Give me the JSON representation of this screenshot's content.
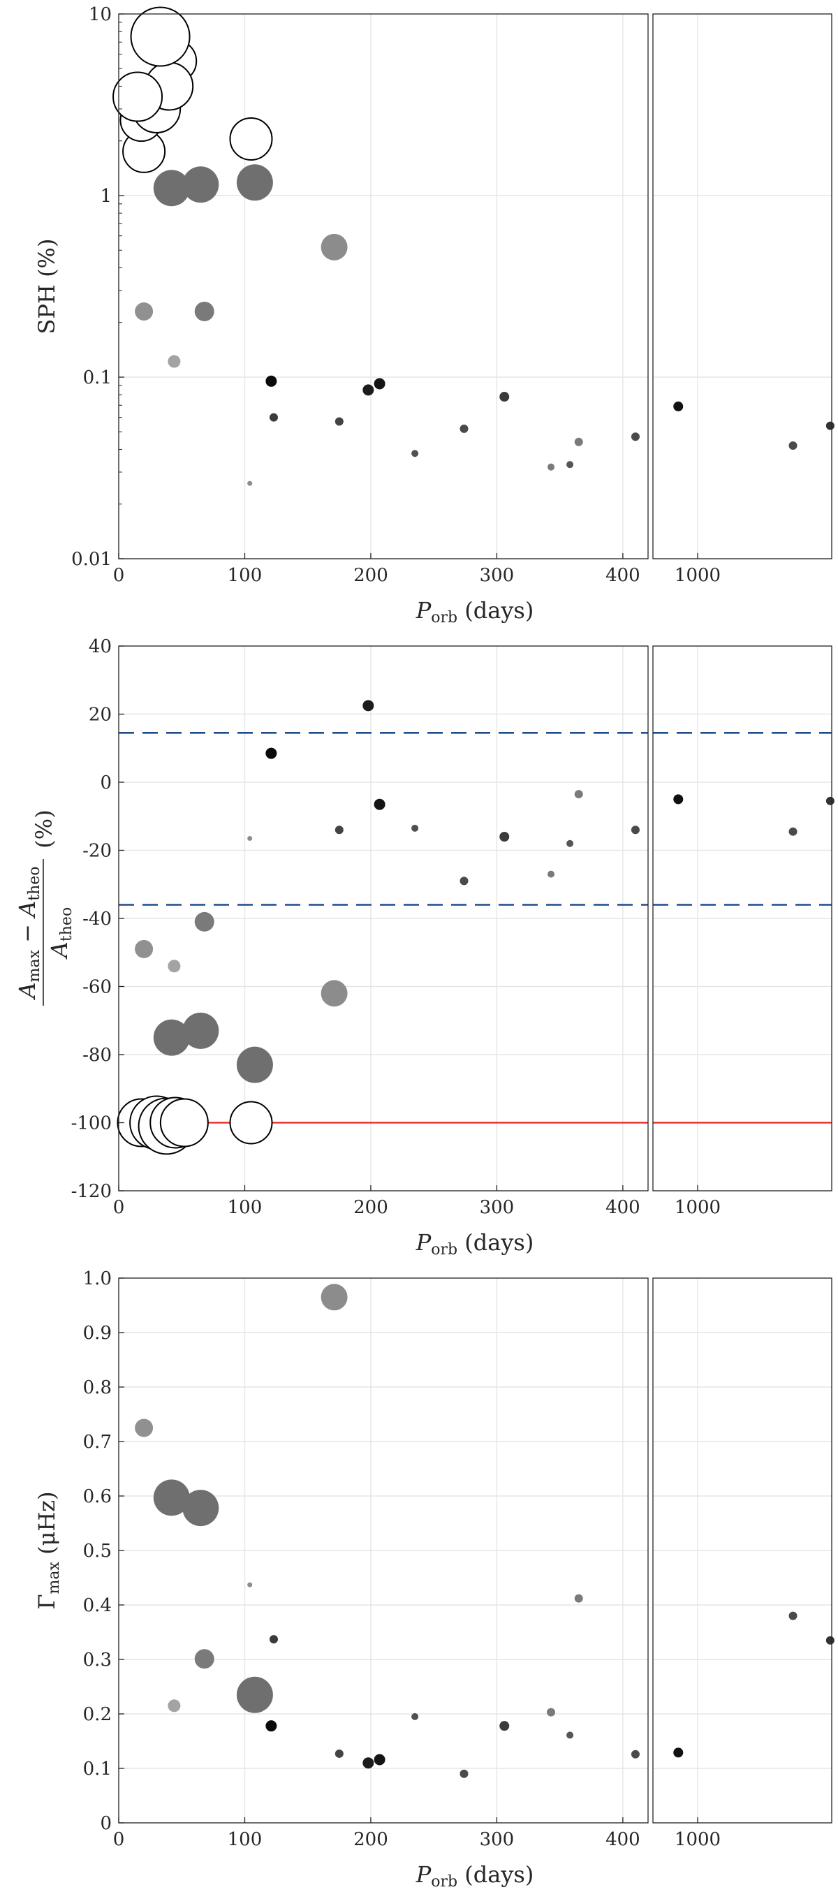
{
  "chart_data": [
    {
      "type": "scatter",
      "panel": "top",
      "ylabel": "SPH (%)",
      "xlabel": "P_orb (days)",
      "yscale": "log",
      "ylim": [
        0.01,
        10
      ],
      "yticks": [
        "0.01",
        "0.1",
        "1",
        "10"
      ],
      "xlim_left": [
        0,
        420
      ],
      "xticks_left": [
        "0",
        "100",
        "200",
        "300",
        "400"
      ],
      "xlim_right": [
        700,
        1900
      ],
      "xticks_right": [
        "1000"
      ],
      "grid": true,
      "points_left": [
        {
          "x": 20,
          "y": 1.75,
          "shade": "#ffffff",
          "size": 30
        },
        {
          "x": 18,
          "y": 2.6,
          "shade": "#ffffff",
          "size": 30
        },
        {
          "x": 30,
          "y": 3.0,
          "shade": "#ffffff",
          "size": 34
        },
        {
          "x": 45,
          "y": 5.5,
          "shade": "#ffffff",
          "size": 30
        },
        {
          "x": 40,
          "y": 4.0,
          "shade": "#ffffff",
          "size": 34
        },
        {
          "x": 15,
          "y": 3.5,
          "shade": "#ffffff",
          "size": 35
        },
        {
          "x": 33,
          "y": 7.5,
          "shade": "#ffffff",
          "size": 42
        },
        {
          "x": 105,
          "y": 2.05,
          "shade": "#ffffff",
          "size": 30
        },
        {
          "x": 42,
          "y": 1.1,
          "shade": "#6f6f6f",
          "size": 26
        },
        {
          "x": 65,
          "y": 1.15,
          "shade": "#6f6f6f",
          "size": 26
        },
        {
          "x": 108,
          "y": 1.18,
          "shade": "#6f6f6f",
          "size": 26
        },
        {
          "x": 171,
          "y": 0.52,
          "shade": "#8c8c8c",
          "size": 19
        },
        {
          "x": 20,
          "y": 0.23,
          "shade": "#909090",
          "size": 13
        },
        {
          "x": 68,
          "y": 0.23,
          "shade": "#7a7a7a",
          "size": 14
        },
        {
          "x": 44,
          "y": 0.122,
          "shade": "#a3a3a3",
          "size": 9
        },
        {
          "x": 121,
          "y": 0.095,
          "shade": "#0a0a0a",
          "size": 8
        },
        {
          "x": 198,
          "y": 0.085,
          "shade": "#1c1c1c",
          "size": 8
        },
        {
          "x": 207,
          "y": 0.092,
          "shade": "#141414",
          "size": 8
        },
        {
          "x": 123,
          "y": 0.06,
          "shade": "#3a3a3a",
          "size": 6
        },
        {
          "x": 175,
          "y": 0.057,
          "shade": "#444444",
          "size": 6
        },
        {
          "x": 235,
          "y": 0.038,
          "shade": "#505050",
          "size": 5
        },
        {
          "x": 274,
          "y": 0.052,
          "shade": "#4a4a4a",
          "size": 6
        },
        {
          "x": 306,
          "y": 0.078,
          "shade": "#3a3a3a",
          "size": 7
        },
        {
          "x": 343,
          "y": 0.032,
          "shade": "#7a7a7a",
          "size": 5
        },
        {
          "x": 358,
          "y": 0.033,
          "shade": "#555555",
          "size": 5
        },
        {
          "x": 365,
          "y": 0.044,
          "shade": "#7a7a7a",
          "size": 6
        },
        {
          "x": 410,
          "y": 0.047,
          "shade": "#4a4a4a",
          "size": 6
        },
        {
          "x": 104,
          "y": 0.026,
          "shade": "#8c8c8c",
          "size": 3.5
        }
      ],
      "points_right": [
        {
          "x": 870,
          "y": 0.069,
          "shade": "#111111",
          "size": 7
        },
        {
          "x": 1640,
          "y": 0.042,
          "shade": "#4a4a4a",
          "size": 6
        },
        {
          "x": 1890,
          "y": 0.054,
          "shade": "#333333",
          "size": 6
        }
      ]
    },
    {
      "type": "scatter",
      "panel": "middle",
      "ylabel_num": "A_max − A_theo",
      "ylabel_den": "A_theo",
      "ylabel_unit": "(%)",
      "xlabel": "P_orb (days)",
      "ylim": [
        -120,
        40
      ],
      "yticks": [
        "-120",
        "-100",
        "-80",
        "-60",
        "-40",
        "-20",
        "0",
        "20",
        "40"
      ],
      "xlim_left": [
        0,
        420
      ],
      "xticks_left": [
        "0",
        "100",
        "200",
        "300",
        "400"
      ],
      "xlim_right": [
        700,
        1900
      ],
      "xticks_right": [
        "1000"
      ],
      "grid": true,
      "hlines": [
        {
          "y": 14.5,
          "style": "dashed",
          "color": "#1f4e8c"
        },
        {
          "y": -36,
          "style": "dashed",
          "color": "#1f4e8c"
        },
        {
          "y": -100,
          "style": "solid",
          "color": "#e8231a"
        }
      ],
      "points_left": [
        {
          "x": 18,
          "y": -100,
          "shade": "#ffffff",
          "size": 34
        },
        {
          "x": 30,
          "y": -100,
          "shade": "#ffffff",
          "size": 38
        },
        {
          "x": 38,
          "y": -101,
          "shade": "#ffffff",
          "size": 40
        },
        {
          "x": 45,
          "y": -100,
          "shade": "#ffffff",
          "size": 36
        },
        {
          "x": 52,
          "y": -100,
          "shade": "#ffffff",
          "size": 34
        },
        {
          "x": 105,
          "y": -100,
          "shade": "#ffffff",
          "size": 30
        },
        {
          "x": 42,
          "y": -75,
          "shade": "#6f6f6f",
          "size": 26
        },
        {
          "x": 65,
          "y": -73,
          "shade": "#6f6f6f",
          "size": 26
        },
        {
          "x": 108,
          "y": -83,
          "shade": "#6f6f6f",
          "size": 26
        },
        {
          "x": 171,
          "y": -62,
          "shade": "#8c8c8c",
          "size": 19
        },
        {
          "x": 20,
          "y": -49,
          "shade": "#909090",
          "size": 13
        },
        {
          "x": 68,
          "y": -41,
          "shade": "#7a7a7a",
          "size": 14
        },
        {
          "x": 44,
          "y": -54,
          "shade": "#a3a3a3",
          "size": 9
        },
        {
          "x": 198,
          "y": 22.5,
          "shade": "#1c1c1c",
          "size": 8
        },
        {
          "x": 121,
          "y": 8.5,
          "shade": "#0a0a0a",
          "size": 8
        },
        {
          "x": 207,
          "y": -6.5,
          "shade": "#141414",
          "size": 8
        },
        {
          "x": 104,
          "y": -16.5,
          "shade": "#8c8c8c",
          "size": 3.5
        },
        {
          "x": 175,
          "y": -14,
          "shade": "#444444",
          "size": 6
        },
        {
          "x": 235,
          "y": -13.5,
          "shade": "#505050",
          "size": 5
        },
        {
          "x": 306,
          "y": -16,
          "shade": "#3a3a3a",
          "size": 7
        },
        {
          "x": 274,
          "y": -29,
          "shade": "#4a4a4a",
          "size": 6
        },
        {
          "x": 343,
          "y": -27,
          "shade": "#7a7a7a",
          "size": 5
        },
        {
          "x": 358,
          "y": -18,
          "shade": "#555555",
          "size": 5
        },
        {
          "x": 365,
          "y": -3.5,
          "shade": "#7a7a7a",
          "size": 6
        },
        {
          "x": 410,
          "y": -14,
          "shade": "#4a4a4a",
          "size": 6
        }
      ],
      "points_right": [
        {
          "x": 870,
          "y": -5,
          "shade": "#111111",
          "size": 7
        },
        {
          "x": 1640,
          "y": -14.5,
          "shade": "#4a4a4a",
          "size": 6
        },
        {
          "x": 1890,
          "y": -5.5,
          "shade": "#333333",
          "size": 6
        }
      ]
    },
    {
      "type": "scatter",
      "panel": "bottom",
      "ylabel": "Γ_max (μHz)",
      "xlabel": "P_orb (days)",
      "ylim": [
        0,
        1.0
      ],
      "yticks": [
        "0",
        "0.1",
        "0.2",
        "0.3",
        "0.4",
        "0.5",
        "0.6",
        "0.7",
        "0.8",
        "0.9",
        "1.0"
      ],
      "xlim_left": [
        0,
        420
      ],
      "xticks_left": [
        "0",
        "100",
        "200",
        "300",
        "400"
      ],
      "xlim_right": [
        700,
        1900
      ],
      "xticks_right": [
        "1000"
      ],
      "grid": true,
      "points_left": [
        {
          "x": 171,
          "y": 0.965,
          "shade": "#8c8c8c",
          "size": 19
        },
        {
          "x": 20,
          "y": 0.725,
          "shade": "#909090",
          "size": 13
        },
        {
          "x": 42,
          "y": 0.597,
          "shade": "#6f6f6f",
          "size": 26
        },
        {
          "x": 65,
          "y": 0.578,
          "shade": "#6f6f6f",
          "size": 26
        },
        {
          "x": 104,
          "y": 0.437,
          "shade": "#8c8c8c",
          "size": 3.5
        },
        {
          "x": 365,
          "y": 0.412,
          "shade": "#7a7a7a",
          "size": 6
        },
        {
          "x": 123,
          "y": 0.337,
          "shade": "#3a3a3a",
          "size": 6
        },
        {
          "x": 68,
          "y": 0.301,
          "shade": "#7a7a7a",
          "size": 14
        },
        {
          "x": 108,
          "y": 0.235,
          "shade": "#6f6f6f",
          "size": 26
        },
        {
          "x": 44,
          "y": 0.215,
          "shade": "#a3a3a3",
          "size": 9
        },
        {
          "x": 121,
          "y": 0.178,
          "shade": "#0a0a0a",
          "size": 8
        },
        {
          "x": 175,
          "y": 0.127,
          "shade": "#444444",
          "size": 6
        },
        {
          "x": 198,
          "y": 0.11,
          "shade": "#1c1c1c",
          "size": 8
        },
        {
          "x": 207,
          "y": 0.116,
          "shade": "#141414",
          "size": 8
        },
        {
          "x": 235,
          "y": 0.195,
          "shade": "#505050",
          "size": 5
        },
        {
          "x": 274,
          "y": 0.09,
          "shade": "#4a4a4a",
          "size": 6
        },
        {
          "x": 306,
          "y": 0.178,
          "shade": "#3a3a3a",
          "size": 7
        },
        {
          "x": 343,
          "y": 0.203,
          "shade": "#7a7a7a",
          "size": 6
        },
        {
          "x": 358,
          "y": 0.161,
          "shade": "#555555",
          "size": 5
        },
        {
          "x": 410,
          "y": 0.126,
          "shade": "#4a4a4a",
          "size": 6
        }
      ],
      "points_right": [
        {
          "x": 870,
          "y": 0.129,
          "shade": "#111111",
          "size": 7
        },
        {
          "x": 1640,
          "y": 0.38,
          "shade": "#4a4a4a",
          "size": 6
        },
        {
          "x": 1890,
          "y": 0.335,
          "shade": "#333333",
          "size": 6
        }
      ]
    }
  ]
}
